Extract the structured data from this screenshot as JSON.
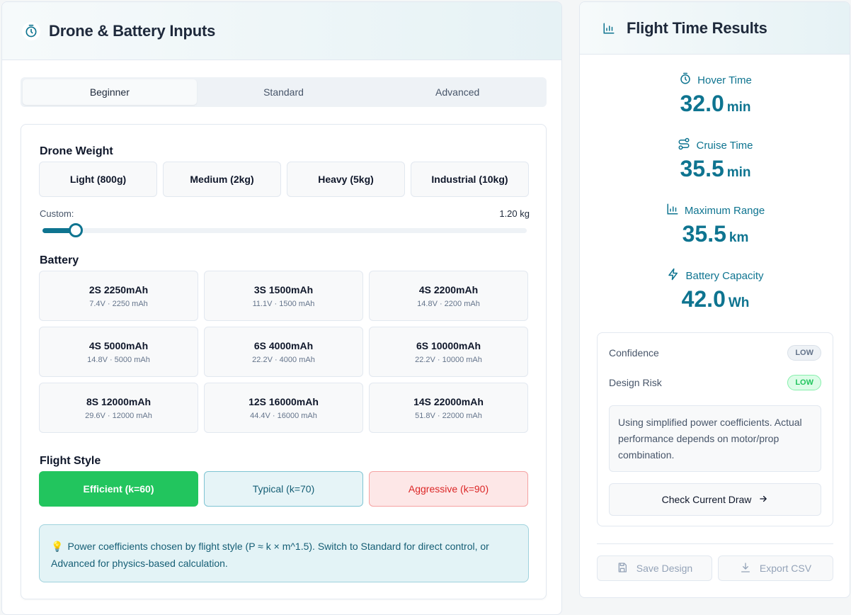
{
  "left": {
    "title": "Drone & Battery Inputs",
    "tabs": [
      "Beginner",
      "Standard",
      "Advanced"
    ],
    "active_tab": "Beginner",
    "weight": {
      "label": "Drone Weight",
      "presets": [
        "Light (800g)",
        "Medium (2kg)",
        "Heavy (5kg)",
        "Industrial (10kg)"
      ],
      "custom_label": "Custom:",
      "custom_value": "1.20 kg",
      "slider_fraction": 0.054
    },
    "battery": {
      "label": "Battery",
      "options": [
        {
          "name": "2S 2250mAh",
          "spec": "7.4V · 2250 mAh"
        },
        {
          "name": "3S 1500mAh",
          "spec": "11.1V · 1500 mAh"
        },
        {
          "name": "4S 2200mAh",
          "spec": "14.8V · 2200 mAh"
        },
        {
          "name": "4S 5000mAh",
          "spec": "14.8V · 5000 mAh"
        },
        {
          "name": "6S 4000mAh",
          "spec": "22.2V · 4000 mAh"
        },
        {
          "name": "6S 10000mAh",
          "spec": "22.2V · 10000 mAh"
        },
        {
          "name": "8S 12000mAh",
          "spec": "29.6V · 12000 mAh"
        },
        {
          "name": "12S 16000mAh",
          "spec": "44.4V · 16000 mAh"
        },
        {
          "name": "14S 22000mAh",
          "spec": "51.8V · 22000 mAh"
        }
      ]
    },
    "flight_style": {
      "label": "Flight Style",
      "efficient": "Efficient (k=60)",
      "typical": "Typical (k=70)",
      "aggressive": "Aggressive (k=90)"
    },
    "info_icon": "💡",
    "info_text": "Power coefficients chosen by flight style (P ≈ k × m^1.5). Switch to Standard for direct control, or Advanced for physics-based calculation."
  },
  "right": {
    "title": "Flight Time Results",
    "hover": {
      "label": "Hover Time",
      "value": "32.0",
      "unit": "min"
    },
    "cruise": {
      "label": "Cruise Time",
      "value": "35.5",
      "unit": "min"
    },
    "range": {
      "label": "Maximum Range",
      "value": "35.5",
      "unit": "km"
    },
    "capacity": {
      "label": "Battery Capacity",
      "value": "42.0",
      "unit": "Wh"
    },
    "confidence_label": "Confidence",
    "confidence_badge": "LOW",
    "risk_label": "Design Risk",
    "risk_badge": "LOW",
    "note": "Using simplified power coefficients. Actual performance depends on motor/prop combination.",
    "check_button": "Check Current Draw",
    "save_button": "Save Design",
    "export_button": "Export CSV"
  },
  "colors": {
    "accent": "#0e7490",
    "success": "#22c55e",
    "danger": "#dc2626"
  },
  "icons": [
    "stopwatch-icon",
    "bar-chart-icon",
    "route-icon",
    "lightning-icon",
    "arrow-right-icon",
    "save-icon",
    "download-icon"
  ]
}
